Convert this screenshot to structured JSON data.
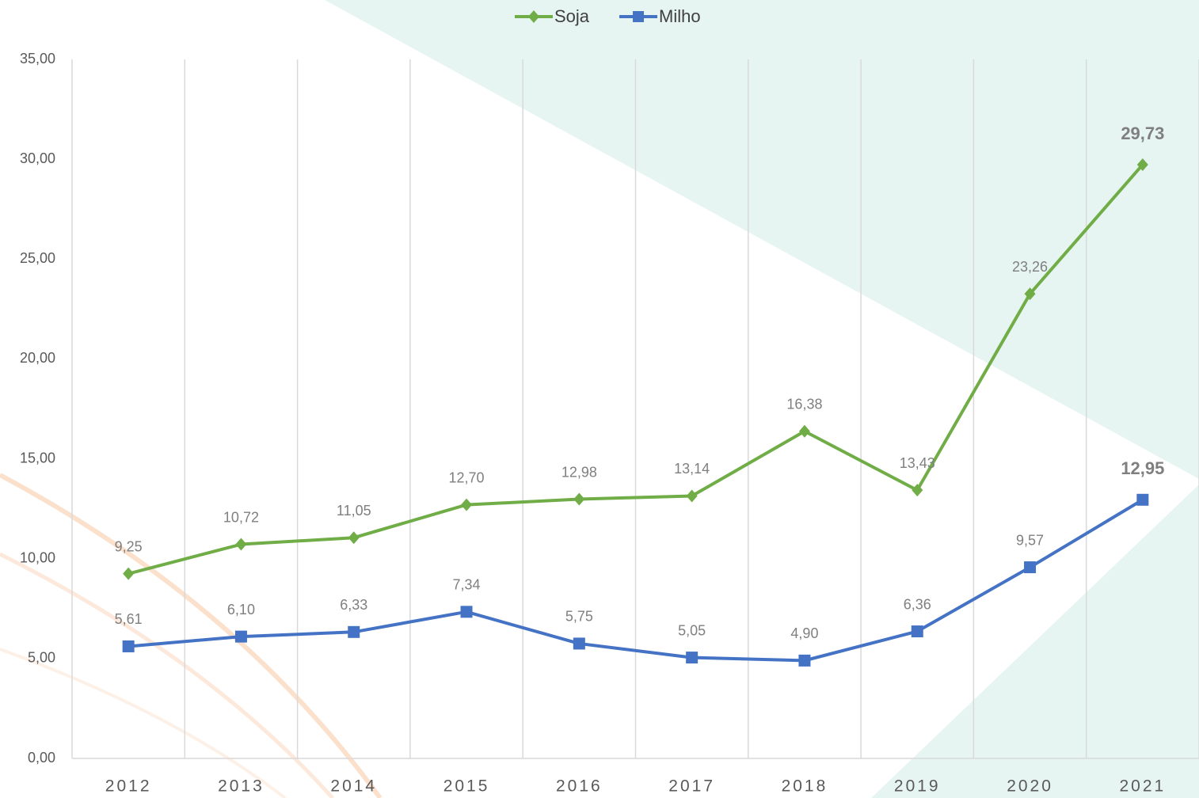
{
  "chart_data": {
    "type": "line",
    "categories": [
      "2012",
      "2013",
      "2014",
      "2015",
      "2016",
      "2017",
      "2018",
      "2019",
      "2020",
      "2021"
    ],
    "series": [
      {
        "name": "Soja",
        "color": "#70ad47",
        "marker": "diamond",
        "values": [
          9.25,
          10.72,
          11.05,
          12.7,
          12.98,
          13.14,
          16.38,
          13.43,
          23.26,
          29.73
        ],
        "value_labels": [
          "9,25",
          "10,72",
          "11,05",
          "12,70",
          "12,98",
          "13,14",
          "16,38",
          "13,43",
          "23,26",
          "29,73"
        ]
      },
      {
        "name": "Milho",
        "color": "#4472c4",
        "marker": "square",
        "values": [
          5.61,
          6.1,
          6.33,
          7.34,
          5.75,
          5.05,
          4.9,
          6.36,
          9.57,
          12.95
        ],
        "value_labels": [
          "5,61",
          "6,10",
          "6,33",
          "7,34",
          "5,75",
          "5,05",
          "4,90",
          "6,36",
          "9,57",
          "12,95"
        ]
      }
    ],
    "ylim": [
      0,
      35
    ],
    "yticks": [
      {
        "value": 0,
        "label": "0,00"
      },
      {
        "value": 5,
        "label": "5,00"
      },
      {
        "value": 10,
        "label": "10,00"
      },
      {
        "value": 15,
        "label": "15,00"
      },
      {
        "value": 20,
        "label": "20,00"
      },
      {
        "value": 25,
        "label": "25,00"
      },
      {
        "value": 30,
        "label": "30,00"
      },
      {
        "value": 35,
        "label": "35,00"
      }
    ],
    "legend": "top"
  }
}
